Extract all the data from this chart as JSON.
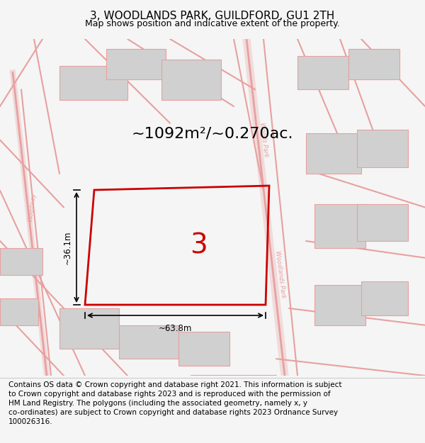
{
  "title": "3, WOODLANDS PARK, GUILDFORD, GU1 2TH",
  "subtitle": "Map shows position and indicative extent of the property.",
  "area_text": "~1092m²/~0.270ac.",
  "dim_width": "~63.8m",
  "dim_height": "~36.1m",
  "plot_number": "3",
  "footer": "Contains OS data © Crown copyright and database right 2021. This information is subject to Crown copyright and database rights 2023 and is reproduced with the permission of HM Land Registry. The polygons (including the associated geometry, namely x, y co-ordinates) are subject to Crown copyright and database rights 2023 Ordnance Survey 100026316.",
  "bg_color": "#f5f5f5",
  "map_bg": "#ffffff",
  "road_color": "#e8a0a0",
  "plot_outline_color": "#cc0000",
  "plot_fill_color": "#ffffff",
  "building_color": "#d0d0d0",
  "title_fontsize": 11,
  "subtitle_fontsize": 9,
  "footer_fontsize": 7.5
}
